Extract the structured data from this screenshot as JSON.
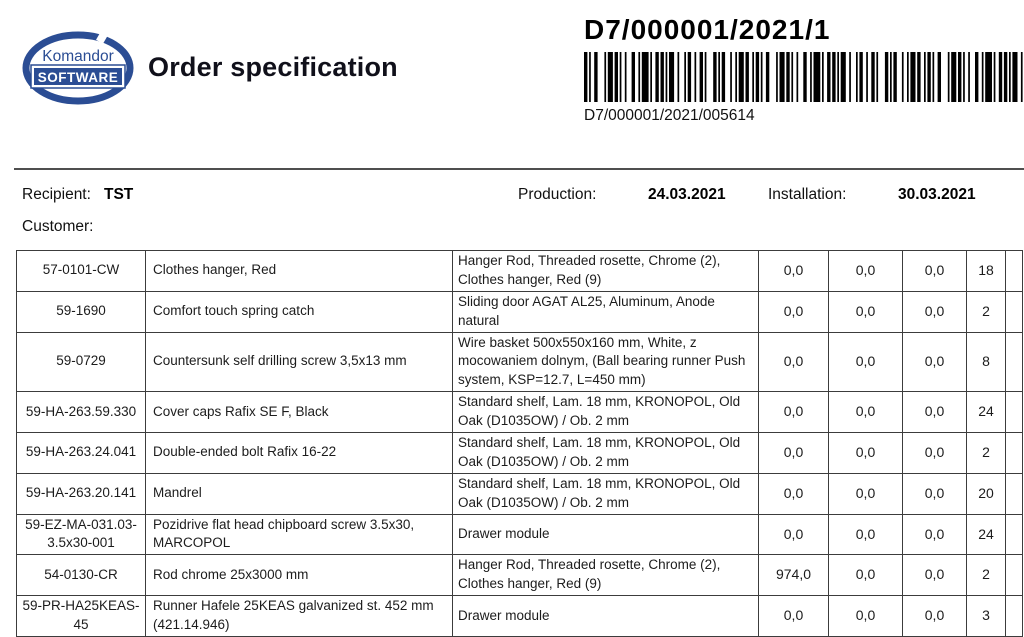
{
  "logo": {
    "line1": "Komandor",
    "line2": "SOFTWARE"
  },
  "header": {
    "title": "Order specification",
    "doc_number": "D7/000001/2021/1",
    "barcode_label": "D7/000001/2021/005614"
  },
  "info": {
    "recipient_label": "Recipient:",
    "recipient_value": "TST",
    "production_label": "Production:",
    "production_value": "24.03.2021",
    "installation_label": "Installation:",
    "installation_value": "30.03.2021",
    "customer_label": "Customer:"
  },
  "table": {
    "rows": [
      {
        "code": "57-0101-CW",
        "name": "Clothes hanger, Red",
        "description": "Hanger Rod, Threaded rosette, Chrome (2), Clothes hanger, Red (9)",
        "v1": "0,0",
        "v2": "0,0",
        "v3": "0,0",
        "qty": "18"
      },
      {
        "code": "59-1690",
        "name": "Comfort touch spring catch",
        "description": "Sliding door AGAT AL25, Aluminum, Anode natural",
        "v1": "0,0",
        "v2": "0,0",
        "v3": "0,0",
        "qty": "2"
      },
      {
        "code": "59-0729",
        "name": "Countersunk self drilling screw 3,5x13 mm",
        "description": "Wire basket 500x550x160 mm, White, z mocowaniem dolnym, (Ball bearing runner Push system, KSP=12.7, L=450 mm)",
        "v1": "0,0",
        "v2": "0,0",
        "v3": "0,0",
        "qty": "8"
      },
      {
        "code": "59-HA-263.59.330",
        "name": "Cover caps Rafix SE F, Black",
        "description": "Standard shelf, Lam. 18 mm, KRONOPOL, Old Oak (D1035OW) / Ob. 2 mm",
        "v1": "0,0",
        "v2": "0,0",
        "v3": "0,0",
        "qty": "24"
      },
      {
        "code": "59-HA-263.24.041",
        "name": "Double-ended bolt Rafix 16-22",
        "description": "Standard shelf, Lam. 18 mm, KRONOPOL, Old Oak (D1035OW) / Ob. 2 mm",
        "v1": "0,0",
        "v2": "0,0",
        "v3": "0,0",
        "qty": "2"
      },
      {
        "code": "59-HA-263.20.141",
        "name": "Mandrel",
        "description": "Standard shelf, Lam. 18 mm, KRONOPOL, Old Oak (D1035OW) / Ob. 2 mm",
        "v1": "0,0",
        "v2": "0,0",
        "v3": "0,0",
        "qty": "20"
      },
      {
        "code": "59-EZ-MA-031.03-3.5x30-001",
        "name": "Pozidrive flat head chipboard screw 3.5x30, MARCOPOL",
        "description": "Drawer module",
        "v1": "0,0",
        "v2": "0,0",
        "v3": "0,0",
        "qty": "24"
      },
      {
        "code": "54-0130-CR",
        "name": "Rod chrome 25x3000 mm",
        "description": "Hanger Rod, Threaded rosette, Chrome (2), Clothes hanger, Red (9)",
        "v1": "974,0",
        "v2": "0,0",
        "v3": "0,0",
        "qty": "2"
      },
      {
        "code": "59-PR-HA25KEAS-45",
        "name": "Runner Hafele 25KEAS galvanized st. 452 mm (421.14.946)",
        "description": "Drawer module",
        "v1": "0,0",
        "v2": "0,0",
        "v3": "0,0",
        "qty": "3"
      }
    ]
  },
  "colors": {
    "logo_blue": "#2b4d94",
    "bar_black": "#000000"
  }
}
